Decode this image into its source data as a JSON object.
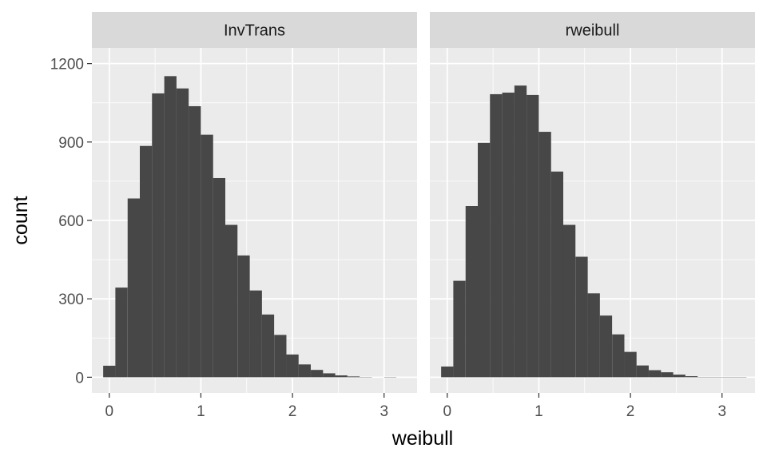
{
  "chart_data": {
    "type": "bar",
    "subtype": "faceted-histogram",
    "xlabel": "weibull",
    "ylabel": "count",
    "xlim": [
      -0.19,
      3.36
    ],
    "ylim": [
      -60,
      1260
    ],
    "x_ticks": [
      0,
      1,
      2,
      3
    ],
    "y_ticks": [
      0,
      300,
      600,
      900,
      1200
    ],
    "grid": true,
    "bin_width": 0.1333,
    "fill_color": "#474747",
    "panel_background": "#ebebeb",
    "strip_background": "#d9d9d9",
    "facets": [
      {
        "label": "InvTrans",
        "bin_centers": [
          0.0,
          0.133,
          0.267,
          0.4,
          0.533,
          0.667,
          0.8,
          0.933,
          1.067,
          1.2,
          1.333,
          1.467,
          1.6,
          1.733,
          1.867,
          2.0,
          2.133,
          2.267,
          2.4,
          2.533,
          2.667,
          2.8,
          2.933,
          3.067
        ],
        "values": [
          44,
          343,
          684,
          885,
          1086,
          1152,
          1105,
          1037,
          928,
          762,
          583,
          466,
          332,
          240,
          162,
          87,
          49,
          28,
          15,
          7,
          3,
          1,
          0,
          1
        ]
      },
      {
        "label": "rweibull",
        "bin_centers": [
          0.0,
          0.133,
          0.267,
          0.4,
          0.533,
          0.667,
          0.8,
          0.933,
          1.067,
          1.2,
          1.333,
          1.467,
          1.6,
          1.733,
          1.867,
          2.0,
          2.133,
          2.267,
          2.4,
          2.533,
          2.667,
          2.8,
          2.933,
          3.067,
          3.2
        ],
        "values": [
          41,
          369,
          655,
          897,
          1083,
          1089,
          1116,
          1080,
          939,
          787,
          583,
          461,
          321,
          236,
          164,
          97,
          45,
          27,
          19,
          10,
          4,
          1,
          1,
          1,
          1
        ]
      }
    ]
  }
}
